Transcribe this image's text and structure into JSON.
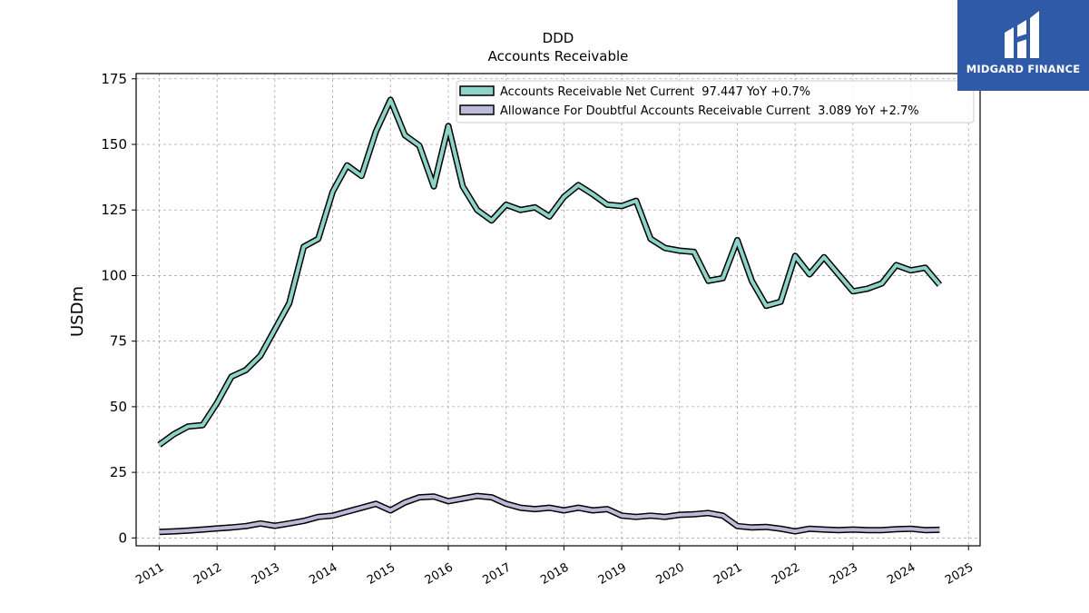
{
  "header": {
    "ticker": "DDD",
    "title": "Accounts Receivable"
  },
  "logo": {
    "text": "MIDGARD FINANCE",
    "bg_color": "#2f5aa8"
  },
  "chart_data": {
    "type": "line",
    "title": "DDD\nAccounts Receivable",
    "ylabel": "USDm",
    "xlabel": "",
    "ylim": [
      -3,
      177
    ],
    "xlim": [
      2010.6,
      2025.2
    ],
    "yticks": [
      0,
      25,
      50,
      75,
      100,
      125,
      150,
      175
    ],
    "xticks": [
      "2011",
      "2012",
      "2013",
      "2014",
      "2015",
      "2016",
      "2017",
      "2018",
      "2019",
      "2020",
      "2021",
      "2022",
      "2023",
      "2024",
      "2025"
    ],
    "grid": true,
    "legend_position": "top-right",
    "series": [
      {
        "name": "Accounts Receivable Net Current  97.447 YoY +0.7%",
        "color": "#8dd3c7",
        "x": [
          2011.0,
          2011.25,
          2011.5,
          2011.75,
          2012.0,
          2012.25,
          2012.5,
          2012.75,
          2013.0,
          2013.25,
          2013.5,
          2013.75,
          2014.0,
          2014.25,
          2014.5,
          2014.75,
          2015.0,
          2015.25,
          2015.5,
          2015.75,
          2016.0,
          2016.25,
          2016.5,
          2016.75,
          2017.0,
          2017.25,
          2017.5,
          2017.75,
          2018.0,
          2018.25,
          2018.5,
          2018.75,
          2019.0,
          2019.25,
          2019.5,
          2019.75,
          2020.0,
          2020.25,
          2020.5,
          2020.75,
          2021.0,
          2021.25,
          2021.5,
          2021.75,
          2022.0,
          2022.25,
          2022.5,
          2022.75,
          2023.0,
          2023.25,
          2023.5,
          2023.75,
          2024.0,
          2024.25,
          2024.5
        ],
        "values": [
          35.5,
          39.5,
          42.5,
          43,
          51.5,
          61.5,
          64,
          69.5,
          79.5,
          89.5,
          111,
          114,
          132,
          142,
          138,
          155,
          167,
          153.5,
          149.5,
          134,
          157,
          134,
          125,
          121,
          127,
          125,
          126,
          122.5,
          130,
          134.5,
          131,
          127,
          126.5,
          128.5,
          114,
          110.5,
          109.5,
          109,
          98,
          99,
          113.5,
          98,
          88.5,
          90,
          107.5,
          100.5,
          107,
          100.5,
          94,
          95,
          97,
          104,
          102,
          103,
          96.5
        ]
      },
      {
        "name": "Allowance For Doubtful Accounts Receivable Current  3.089 YoY +2.7%",
        "color": "#bebada",
        "x": [
          2011.0,
          2011.25,
          2011.5,
          2011.75,
          2012.0,
          2012.25,
          2012.5,
          2012.75,
          2013.0,
          2013.25,
          2013.5,
          2013.75,
          2014.0,
          2014.25,
          2014.5,
          2014.75,
          2015.0,
          2015.25,
          2015.5,
          2015.75,
          2016.0,
          2016.25,
          2016.5,
          2016.75,
          2017.0,
          2017.25,
          2017.5,
          2017.75,
          2018.0,
          2018.25,
          2018.5,
          2018.75,
          2019.0,
          2019.25,
          2019.5,
          2019.75,
          2020.0,
          2020.25,
          2020.5,
          2020.75,
          2021.0,
          2021.25,
          2021.5,
          2021.75,
          2022.0,
          2022.25,
          2022.5,
          2022.75,
          2023.0,
          2023.25,
          2023.5,
          2023.75,
          2024.0,
          2024.25,
          2024.5
        ],
        "values": [
          2.3,
          2.5,
          2.8,
          3.2,
          3.6,
          4.0,
          4.5,
          5.5,
          4.6,
          5.5,
          6.5,
          8.0,
          8.5,
          10.0,
          11.5,
          13.0,
          10.5,
          13.5,
          15.5,
          15.8,
          14.0,
          15.0,
          16.0,
          15.5,
          13.0,
          11.5,
          11.0,
          11.5,
          10.5,
          11.5,
          10.5,
          11.0,
          8.5,
          8.0,
          8.5,
          8.0,
          8.8,
          9.0,
          9.5,
          8.5,
          4.5,
          4.0,
          4.2,
          3.5,
          2.5,
          3.5,
          3.2,
          3.0,
          3.2,
          3.0,
          3.0,
          3.3,
          3.5,
          3.0,
          3.1
        ]
      }
    ]
  }
}
